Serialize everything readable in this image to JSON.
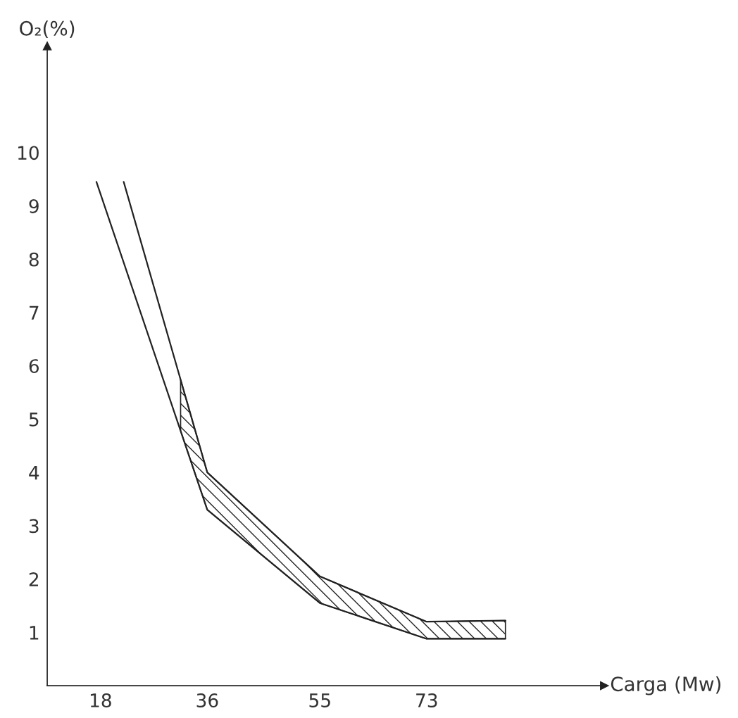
{
  "chart_data": {
    "type": "line",
    "xlabel": "Carga (Mw)",
    "ylabel": "O₂(%)",
    "xlim": [
      9,
      103
    ],
    "xticks": [
      18,
      36,
      55,
      73
    ],
    "ylim": [
      0,
      12
    ],
    "yticks": [
      1,
      2,
      3,
      4,
      5,
      6,
      7,
      8,
      9,
      10
    ],
    "grid": false,
    "legend": false,
    "line_style": "solid",
    "marker": "none",
    "series": [
      {
        "color": "#222222",
        "x": [
          17.3,
          31.5,
          36,
          55,
          73,
          86.3
        ],
        "values": [
          9.45,
          4.78,
          3.3,
          1.55,
          0.88,
          0.88
        ],
        "lower": [
          null,
          4.78,
          3.3,
          1.55,
          0.88,
          0.88
        ],
        "upper": [
          null,
          5.74,
          4.0,
          2.05,
          1.2,
          1.22
        ]
      },
      {
        "color": "#222222",
        "x": [
          21.9,
          36,
          55,
          73,
          86.3
        ],
        "values": [
          9.45,
          4.0,
          2.05,
          1.2,
          1.22
        ]
      }
    ]
  }
}
